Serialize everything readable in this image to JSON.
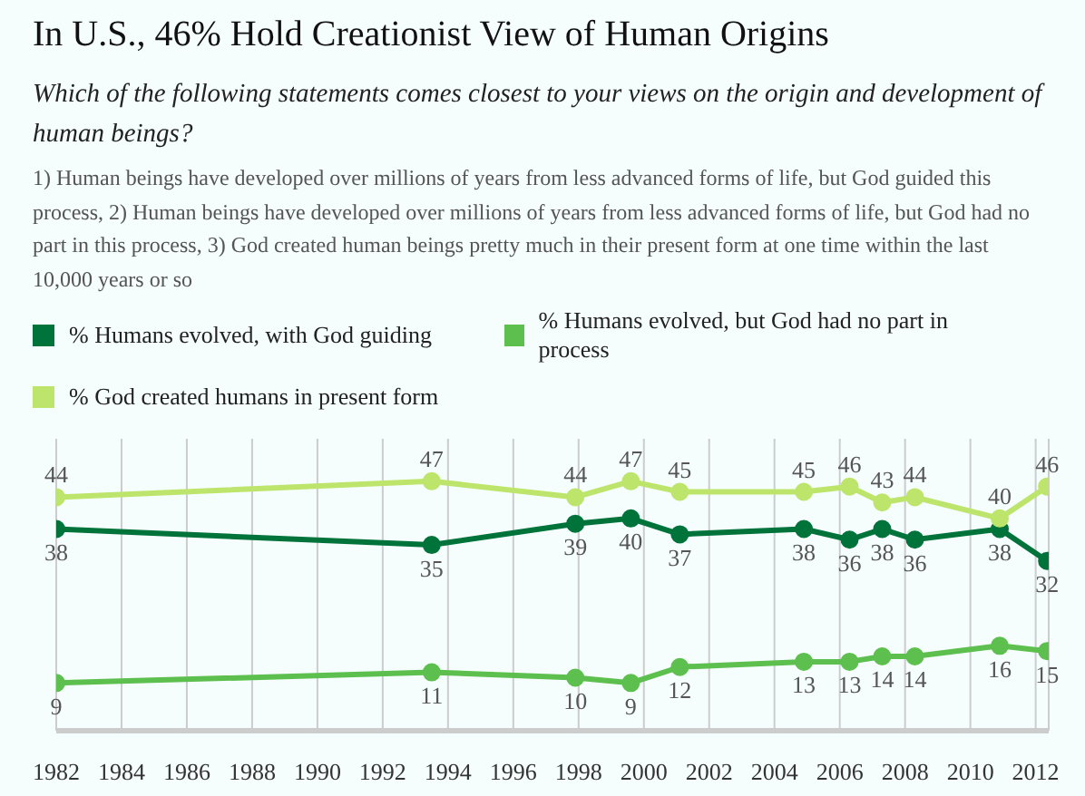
{
  "chart_data": {
    "type": "line",
    "title": "In U.S., 46% Hold Creationist View of Human Origins",
    "subtitle": "Which of the following statements comes closest to your views on the origin and development of human beings?",
    "annotations": [
      "1) Human beings have developed over millions of years from less advanced forms of life, but God guided this process, 2) Human beings have developed over millions of years from less advanced forms of life, but God had no part in this process, 3) God created human beings pretty much in their present form at one time within the last 10,000 years or so"
    ],
    "x": [
      1982,
      1993.5,
      1997.9,
      1999.6,
      2001.1,
      2004.9,
      2006.3,
      2007.3,
      2008.3,
      2010.9,
      2012.35
    ],
    "series": [
      {
        "name": "% Humans evolved, with God guiding",
        "color": "#00733a",
        "values": [
          38,
          35,
          39,
          40,
          37,
          38,
          36,
          38,
          36,
          38,
          32
        ]
      },
      {
        "name": "% Humans evolved, but God had no part in process",
        "color": "#5cbf4e",
        "values": [
          9,
          11,
          10,
          9,
          12,
          13,
          13,
          14,
          14,
          16,
          15
        ]
      },
      {
        "name": "% God created humans in present form",
        "color": "#bde56b",
        "values": [
          44,
          47,
          44,
          47,
          45,
          45,
          46,
          43,
          44,
          40,
          46
        ]
      }
    ],
    "xlim": [
      1982,
      2012.4
    ],
    "xticks": [
      1982,
      1984,
      1986,
      1988,
      1990,
      1992,
      1994,
      1996,
      1998,
      2000,
      2002,
      2004,
      2006,
      2008,
      2010,
      2012
    ],
    "ylim": [
      0,
      55
    ],
    "tick_labels": "x",
    "grid": "x",
    "legend": "top",
    "data_labels": true,
    "marker": "circle",
    "line_style": "solid"
  }
}
